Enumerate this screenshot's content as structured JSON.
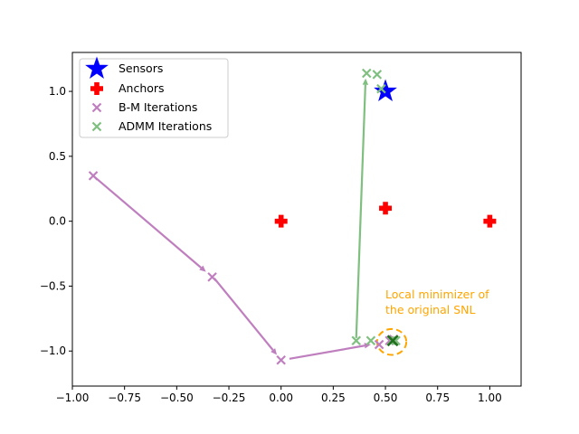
{
  "chart_data": {
    "type": "scatter",
    "xlim": [
      -1.0,
      1.15
    ],
    "ylim": [
      -1.27,
      1.3
    ],
    "xticks": [
      -1.0,
      -0.75,
      -0.5,
      -0.25,
      0.0,
      0.25,
      0.5,
      0.75,
      1.0
    ],
    "xtick_labels": [
      "−1.00",
      "−0.75",
      "−0.50",
      "−0.25",
      "0.00",
      "0.25",
      "0.50",
      "0.75",
      "1.00"
    ],
    "yticks": [
      -1.0,
      -0.5,
      0.0,
      0.5,
      1.0
    ],
    "ytick_labels": [
      "−1.0",
      "−0.5",
      "0.0",
      "0.5",
      "1.0"
    ],
    "grid": false,
    "legend_position": "top-left",
    "series": [
      {
        "name": "Sensors",
        "marker": "star",
        "color": "#0000ff",
        "points": [
          [
            0.5,
            1.0
          ]
        ]
      },
      {
        "name": "Anchors",
        "marker": "plus",
        "color": "#ff0000",
        "points": [
          [
            0.0,
            0.0
          ],
          [
            0.5,
            0.1
          ],
          [
            1.0,
            0.0
          ]
        ]
      },
      {
        "name": "B-M Iterations",
        "marker": "x",
        "color": "#bf7fbf",
        "points": [
          [
            -0.9,
            0.35
          ],
          [
            -0.33,
            -0.43
          ],
          [
            0.0,
            -1.07
          ],
          [
            0.47,
            -0.95
          ],
          [
            0.52,
            -0.92
          ],
          [
            0.54,
            -0.91
          ]
        ]
      },
      {
        "name": "ADMM Iterations",
        "marker": "x",
        "color": "#7fbf7f",
        "points": [
          [
            0.36,
            -0.92
          ],
          [
            0.41,
            1.14
          ],
          [
            0.46,
            1.13
          ],
          [
            0.48,
            1.02
          ],
          [
            0.43,
            -0.92
          ],
          [
            0.53,
            -0.92
          ],
          [
            0.55,
            -0.92
          ]
        ]
      }
    ],
    "arrows": [
      {
        "series": "B-M Iterations",
        "from": [
          -0.9,
          0.35
        ],
        "to": [
          -0.36,
          -0.39
        ]
      },
      {
        "series": "B-M Iterations",
        "from": [
          -0.32,
          -0.44
        ],
        "to": [
          -0.02,
          -1.03
        ]
      },
      {
        "series": "B-M Iterations",
        "from": [
          0.04,
          -1.06
        ],
        "to": [
          0.43,
          -0.95
        ]
      },
      {
        "series": "ADMM Iterations",
        "from": [
          0.36,
          -0.9
        ],
        "to": [
          0.405,
          1.1
        ]
      }
    ],
    "local_min_marker": {
      "x": [
        0.535
      ],
      "y": [
        -0.92
      ],
      "color": "#1f6f1f"
    },
    "highlight_ellipse": {
      "center": [
        0.53,
        -0.93
      ],
      "rx": 0.07,
      "ry": 0.1,
      "color": "#ffa500"
    },
    "annotation": {
      "lines": [
        "Local minimizer of",
        "the original SNL"
      ],
      "at": [
        0.5,
        -0.72
      ],
      "color": "#ffa500"
    }
  }
}
